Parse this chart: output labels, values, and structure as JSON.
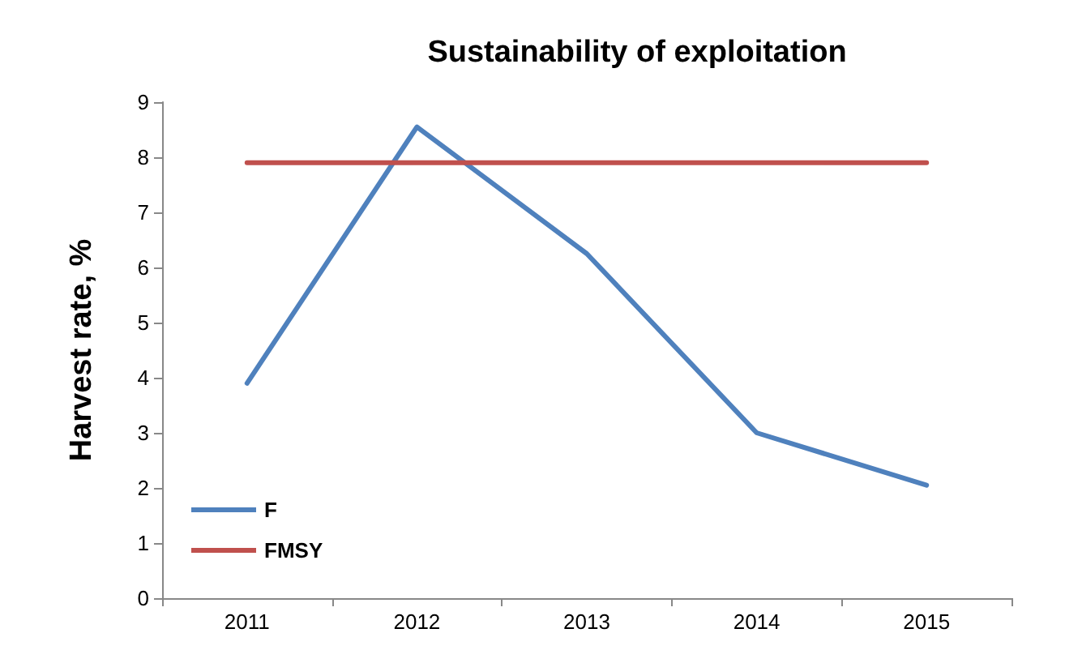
{
  "chart_data": {
    "type": "line",
    "title": "Sustainability of exploitation",
    "ylabel": "Harvest rate, %",
    "categories": [
      "2011",
      "2012",
      "2013",
      "2014",
      "2015"
    ],
    "series": [
      {
        "name": "F",
        "color": "#4f81bd",
        "values": [
          3.9,
          8.55,
          6.25,
          3.0,
          2.05
        ]
      },
      {
        "name": "FMSY",
        "color": "#c0504d",
        "values": [
          7.9,
          7.9,
          7.9,
          7.9,
          7.9
        ]
      }
    ],
    "ylim": [
      0,
      9
    ],
    "yticks": [
      0,
      1,
      2,
      3,
      4,
      5,
      6,
      7,
      8,
      9
    ],
    "grid": false,
    "legend": "bottom left",
    "marker": "none",
    "line_style": "solid"
  }
}
